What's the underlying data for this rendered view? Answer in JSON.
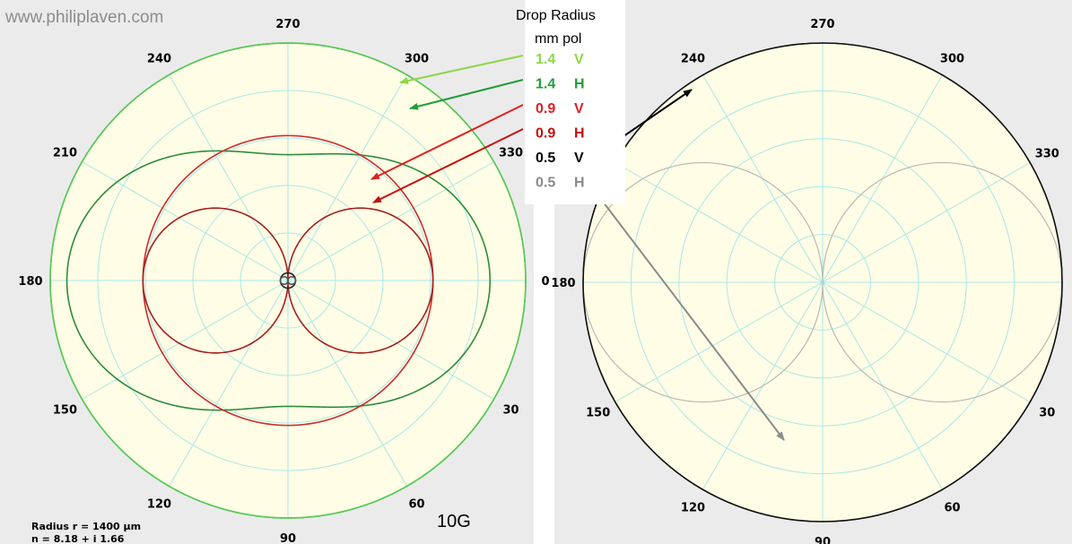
{
  "watermark": "www.philiplaven.com",
  "legend": {
    "title_line1": "Drop Radius",
    "title_line2": "mm  pol",
    "rows": [
      {
        "radius": "1.4",
        "pol": "V",
        "color": "#8ed64a"
      },
      {
        "radius": "1.4",
        "pol": "H",
        "color": "#1f9d3a"
      },
      {
        "radius": "0.9",
        "pol": "V",
        "color": "#e02020"
      },
      {
        "radius": "0.9",
        "pol": "H",
        "color": "#c41010"
      },
      {
        "radius": "0.5",
        "pol": "V",
        "color": "#000000"
      },
      {
        "radius": "0.5",
        "pol": "H",
        "color": "#8a8a8a"
      }
    ]
  },
  "footnote": {
    "line1": "Radius r = 1400 µm",
    "line2": "n = 8.18 + i 1.66"
  },
  "frequency_label": "10G",
  "colors": {
    "plot_background": "#fffde5",
    "grid": "#a8e8ea",
    "panel_background": "#ebebeb"
  },
  "chart_data": [
    {
      "type": "polar",
      "angle_unit": "degrees",
      "angle_ticks": [
        "0",
        "30",
        "60",
        "90",
        "120",
        "150",
        "180",
        "210",
        "240",
        "270",
        "300",
        "330"
      ],
      "grid": true,
      "series": [
        {
          "name": "1.4 V",
          "color": "#3fbf3f",
          "shape": "circle",
          "r": 1.0
        },
        {
          "name": "1.4 H",
          "color": "#2e8b3c",
          "shape": "lobed",
          "r_forward": 0.85,
          "r_side": 0.53,
          "r_back": 0.93
        },
        {
          "name": "0.9 V",
          "color": "#cc2b2b",
          "shape": "circle",
          "r": 0.61
        },
        {
          "name": "0.9 H",
          "color": "#a52020",
          "shape": "dipole",
          "r_max": 0.61
        },
        {
          "name": "0.5 V",
          "color": "#222222",
          "shape": "circle",
          "r": 0.032
        },
        {
          "name": "0.5 H",
          "color": "#555555",
          "shape": "dipole",
          "r_max": 0.032
        }
      ]
    },
    {
      "type": "polar",
      "angle_unit": "degrees",
      "angle_ticks": [
        "0",
        "30",
        "60",
        "90",
        "120",
        "150",
        "180",
        "210",
        "240",
        "270",
        "300",
        "330"
      ],
      "grid": true,
      "series": [
        {
          "name": "0.5 V",
          "color": "#000000",
          "shape": "circle",
          "r": 1.0
        },
        {
          "name": "0.5 H",
          "color": "#b8b8b8",
          "shape": "dipole",
          "r_max": 1.0
        }
      ]
    }
  ]
}
